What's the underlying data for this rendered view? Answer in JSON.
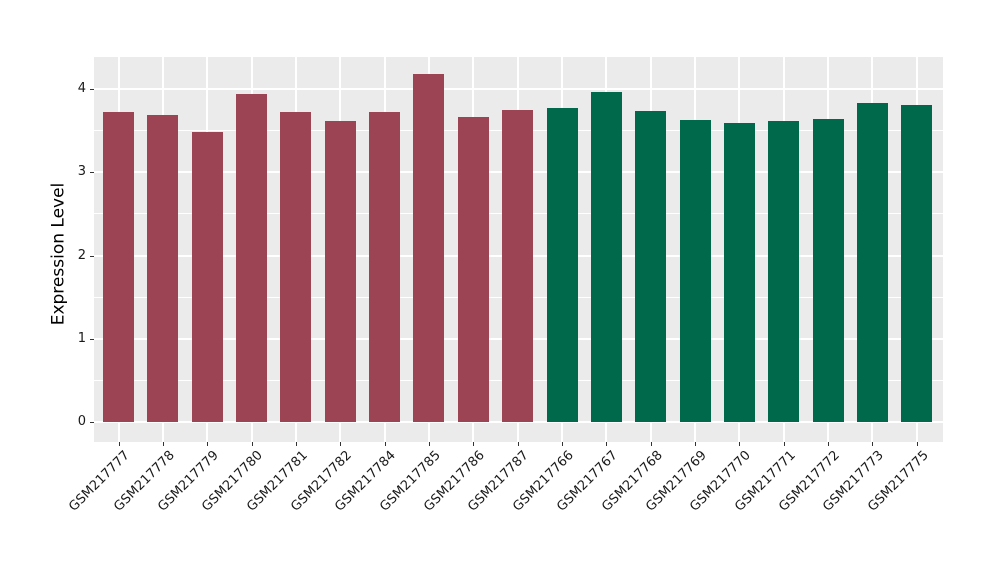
{
  "chart_data": {
    "type": "bar",
    "title": "",
    "xlabel": "",
    "ylabel": "Expression Level",
    "ylim": [
      0,
      4.39
    ],
    "yticks": [
      0,
      1,
      2,
      3,
      4
    ],
    "ytick_labels": [
      "0",
      "1",
      "2",
      "3",
      "4"
    ],
    "grid": true,
    "legend_position": "none",
    "categories": [
      "GSM217777",
      "GSM217778",
      "GSM217779",
      "GSM217780",
      "GSM217781",
      "GSM217782",
      "GSM217784",
      "GSM217785",
      "GSM217786",
      "GSM217787",
      "GSM217766",
      "GSM217767",
      "GSM217768",
      "GSM217769",
      "GSM217770",
      "GSM217771",
      "GSM217772",
      "GSM217773",
      "GSM217775"
    ],
    "values": [
      3.72,
      3.69,
      3.48,
      3.94,
      3.72,
      3.61,
      3.72,
      4.18,
      3.66,
      3.75,
      3.77,
      3.96,
      3.74,
      3.63,
      3.59,
      3.62,
      3.64,
      3.83,
      3.81
    ],
    "bar_colors": [
      "#9C4354",
      "#9C4354",
      "#9C4354",
      "#9C4354",
      "#9C4354",
      "#9C4354",
      "#9C4354",
      "#9C4354",
      "#9C4354",
      "#9C4354",
      "#00684B",
      "#00684B",
      "#00684B",
      "#00684B",
      "#00684B",
      "#00684B",
      "#00684B",
      "#00684B",
      "#00684B"
    ],
    "group_colors": {
      "left_group": "#9C4354",
      "right_group": "#00684B"
    },
    "panel_background": "#EBEBEB",
    "gridline_color": "#FFFFFF",
    "axis_text_color": "#1a1a1a"
  }
}
